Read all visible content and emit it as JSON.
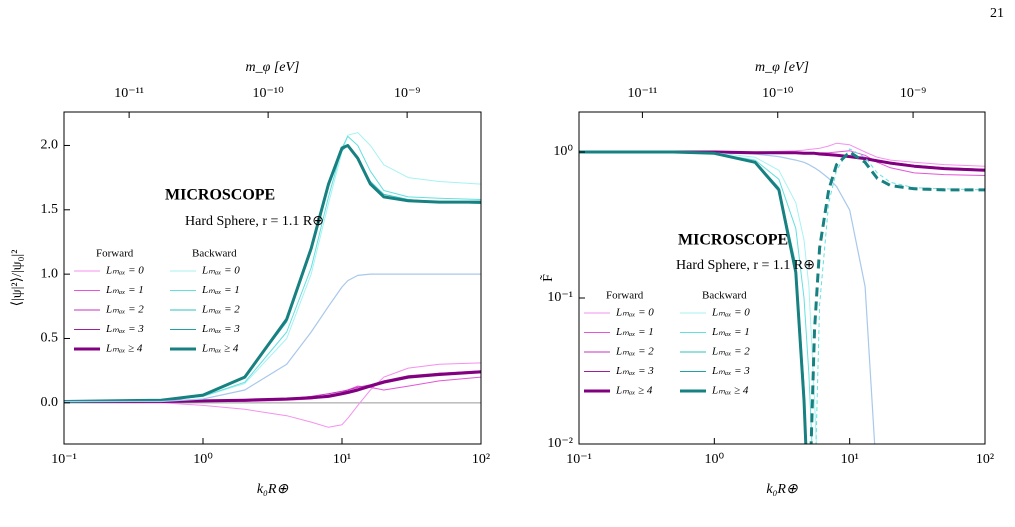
{
  "page_number": "21",
  "chart_data": [
    {
      "type": "line",
      "xscale": "log",
      "yscale": "linear",
      "xlabel": "k₀R⊕",
      "ylabel": "⟨|ψ|²⟩/|ψ₀|²",
      "x2label": "m_φ [eV]",
      "xlim": [
        0.1,
        100
      ],
      "ylim": [
        -0.32,
        2.26
      ],
      "xticks": [
        {
          "value": 0.1,
          "label": "10⁻¹"
        },
        {
          "value": 1,
          "label": "10⁰"
        },
        {
          "value": 10,
          "label": "10¹"
        },
        {
          "value": 100,
          "label": "10²"
        }
      ],
      "yticks": [
        {
          "value": 0,
          "label": "0.0"
        },
        0.5,
        {
          "value": 1,
          "label": "1.0"
        },
        1.5,
        {
          "value": 2,
          "label": "2.0"
        }
      ],
      "x2lim": [
        3.4e-12,
        3.4e-09
      ],
      "x2ticks": [
        {
          "value": 1e-11,
          "label": "10⁻¹¹"
        },
        {
          "value": 1e-10,
          "label": "10⁻¹⁰"
        },
        {
          "value": 1e-09,
          "label": "10⁻⁹"
        }
      ],
      "hline": 0,
      "annotations": [
        "MICROSCOPE",
        "Hard Sphere, r = 1.1 R⊕"
      ],
      "legend_headers": [
        "Forward",
        "Backward"
      ],
      "x": [
        0.1,
        0.5,
        1,
        2,
        4,
        6,
        8,
        10,
        11,
        13,
        16,
        20,
        30,
        50,
        100
      ],
      "series": [
        {
          "name": "Lₘₐₓ = 0",
          "color": "#f590ee",
          "width": 1,
          "values": [
            0.01,
            0.0,
            -0.02,
            -0.05,
            -0.1,
            -0.15,
            -0.19,
            -0.17,
            -0.12,
            -0.02,
            0.1,
            0.2,
            0.27,
            0.3,
            0.31
          ]
        },
        {
          "name": "Lₘₐₓ = 1",
          "color": "#e455d8",
          "width": 1,
          "values": [
            0.01,
            0.01,
            0.01,
            0.01,
            0.02,
            0.03,
            0.05,
            0.08,
            0.1,
            0.13,
            0.12,
            0.1,
            0.13,
            0.17,
            0.2
          ]
        },
        {
          "name": "Lₘₐₓ = 2",
          "color": "#c435bd",
          "width": 1,
          "values": [
            0.01,
            0.01,
            0.01,
            0.02,
            0.03,
            0.05,
            0.07,
            0.09,
            0.1,
            0.12,
            0.14,
            0.17,
            0.2,
            0.23,
            0.25
          ]
        },
        {
          "name": "Lₘₐₓ = 3",
          "color": "#9c209a",
          "width": 1,
          "values": [
            0.01,
            0.01,
            0.015,
            0.02,
            0.03,
            0.04,
            0.06,
            0.08,
            0.09,
            0.11,
            0.14,
            0.17,
            0.21,
            0.23,
            0.24
          ]
        },
        {
          "name": "Lₘₐₓ ≥ 4",
          "color": "#800080",
          "width": 3,
          "values": [
            0.01,
            0.01,
            0.015,
            0.02,
            0.03,
            0.04,
            0.05,
            0.07,
            0.08,
            0.1,
            0.13,
            0.16,
            0.2,
            0.22,
            0.24
          ]
        },
        {
          "name": "Lₘₐₓ = 0",
          "color": "#a6f2f2",
          "width": 1,
          "values": [
            0.01,
            0.02,
            0.05,
            0.15,
            0.5,
            1.0,
            1.55,
            1.95,
            2.08,
            2.1,
            2.0,
            1.85,
            1.75,
            1.72,
            1.7
          ]
        },
        {
          "name": "Lₘₐₓ = 1",
          "color": "#62e0e0",
          "width": 1,
          "values": [
            0.01,
            0.02,
            0.05,
            0.16,
            0.55,
            1.05,
            1.6,
            1.98,
            2.07,
            2.0,
            1.8,
            1.65,
            1.6,
            1.59,
            1.58
          ]
        },
        {
          "name": "Lₘₐₓ = 2",
          "color": "#32c0c0",
          "width": 1,
          "values": [
            0.01,
            0.02,
            0.06,
            0.2,
            0.63,
            1.18,
            1.68,
            1.96,
            2.0,
            1.9,
            1.72,
            1.62,
            1.58,
            1.56,
            1.55
          ]
        },
        {
          "name": "Lₘₐₓ = 3",
          "color": "#20a0a0",
          "width": 1,
          "values": [
            0.01,
            0.02,
            0.06,
            0.2,
            0.64,
            1.19,
            1.69,
            1.97,
            2.0,
            1.89,
            1.7,
            1.6,
            1.57,
            1.56,
            1.55
          ]
        },
        {
          "name": "Lₘₐₓ ≥ 4",
          "color": "#178080",
          "width": 3,
          "values": [
            0.01,
            0.02,
            0.06,
            0.2,
            0.65,
            1.2,
            1.7,
            1.98,
            2.0,
            1.9,
            1.7,
            1.6,
            1.57,
            1.56,
            1.56
          ]
        },
        {
          "color": "#a8c8ec",
          "width": 1.2,
          "values": [
            0.01,
            0.01,
            0.03,
            0.1,
            0.3,
            0.55,
            0.75,
            0.9,
            0.95,
            0.99,
            1.0,
            1.0,
            1.0,
            1.0,
            1.0
          ]
        }
      ]
    },
    {
      "type": "line",
      "xscale": "log",
      "yscale": "log",
      "xlabel": "k₀R⊕",
      "ylabel": "F̃",
      "x2label": "m_φ [eV]",
      "xlim": [
        0.1,
        100
      ],
      "ylim": [
        0.01,
        1.88
      ],
      "xticks": [
        {
          "value": 0.1,
          "label": "10⁻¹"
        },
        {
          "value": 1,
          "label": "10⁰"
        },
        {
          "value": 10,
          "label": "10¹"
        },
        {
          "value": 100,
          "label": "10²"
        }
      ],
      "yticks": [
        {
          "value": 0.01,
          "label": "10⁻²"
        },
        {
          "value": 0.1,
          "label": "10⁻¹"
        },
        {
          "value": 1,
          "label": "10⁰"
        }
      ],
      "x2lim": [
        3.4e-12,
        3.4e-09
      ],
      "x2ticks": [
        {
          "value": 1e-11,
          "label": "10⁻¹¹"
        },
        {
          "value": 1e-10,
          "label": "10⁻¹⁰"
        },
        {
          "value": 1e-09,
          "label": "10⁻⁹"
        }
      ],
      "annotations": [
        "MICROSCOPE",
        "Hard Sphere, r = 1.1 R⊕"
      ],
      "legend_headers": [
        "Forward",
        "Backward"
      ],
      "x": [
        0.1,
        0.5,
        1,
        2,
        3,
        4,
        4.6,
        5,
        5.5,
        6,
        7,
        8,
        10,
        13,
        16,
        20,
        30,
        50,
        100
      ],
      "series": [
        {
          "color": "#a8c8ec",
          "width": 1.2,
          "values": [
            1,
            1,
            0.99,
            0.97,
            0.93,
            0.88,
            0.85,
            0.82,
            0.78,
            0.74,
            0.66,
            0.58,
            0.4,
            0.12,
            0.005,
            null,
            null,
            null,
            null
          ]
        },
        {
          "name": "Lₘₐₓ = 0",
          "color": "#f590ee",
          "width": 1,
          "values": [
            1,
            1,
            1,
            1,
            1.01,
            1.02,
            1.03,
            1.04,
            1.05,
            1.06,
            1.1,
            1.15,
            1.12,
            1.0,
            0.92,
            0.88,
            0.85,
            0.82,
            0.8
          ]
        },
        {
          "name": "Lₘₐₓ = 1",
          "color": "#e455d8",
          "width": 1,
          "values": [
            1,
            1,
            1,
            0.99,
            0.99,
            0.99,
            0.99,
            0.99,
            0.99,
            0.99,
            0.99,
            1.0,
            1.02,
            0.95,
            0.85,
            0.78,
            0.72,
            0.7,
            0.69
          ]
        },
        {
          "name": "Lₘₐₓ = 2",
          "color": "#c435bd",
          "width": 1,
          "values": [
            1,
            1,
            1,
            0.99,
            0.99,
            0.98,
            0.98,
            0.98,
            0.98,
            0.97,
            0.96,
            0.95,
            0.94,
            0.92,
            0.88,
            0.84,
            0.8,
            0.77,
            0.76
          ]
        },
        {
          "name": "Lₘₐₓ = 3",
          "color": "#9c209a",
          "width": 1,
          "values": [
            1,
            1,
            1,
            0.99,
            0.99,
            0.99,
            0.98,
            0.98,
            0.98,
            0.97,
            0.96,
            0.95,
            0.93,
            0.91,
            0.88,
            0.85,
            0.81,
            0.78,
            0.76
          ]
        },
        {
          "name": "Lₘₐₓ ≥ 4",
          "color": "#800080",
          "width": 3,
          "values": [
            1,
            1,
            1,
            0.99,
            0.99,
            0.99,
            0.98,
            0.98,
            0.98,
            0.97,
            0.96,
            0.95,
            0.93,
            0.9,
            0.87,
            0.84,
            0.8,
            0.77,
            0.75
          ]
        },
        {
          "name": "Lₘₐₓ = 0",
          "color": "#a6f2f2",
          "width": 1,
          "values": [
            1,
            1,
            0.99,
            0.92,
            0.75,
            0.45,
            0.25,
            0.12,
            0.02,
            0.003,
            null,
            null,
            null,
            null,
            null,
            null,
            null,
            null,
            null
          ]
        },
        {
          "name": "Lₘₐₓ = 1",
          "color": "#62e0e0",
          "width": 1,
          "values": [
            1,
            1,
            0.98,
            0.88,
            0.65,
            0.3,
            0.1,
            0.03,
            0.004,
            null,
            null,
            null,
            null,
            null,
            null,
            null,
            null,
            null,
            null
          ]
        },
        {
          "name": "Lₘₐₓ = 2",
          "color": "#32c0c0",
          "width": 1,
          "values": [
            1,
            1,
            0.98,
            0.86,
            0.57,
            0.17,
            0.025,
            0.004,
            null,
            null,
            null,
            null,
            null,
            null,
            null,
            null,
            null,
            null,
            null
          ]
        },
        {
          "name": "Lₘₐₓ = 3",
          "color": "#20a0a0",
          "width": 1,
          "values": [
            1,
            1,
            0.98,
            0.85,
            0.56,
            0.16,
            0.022,
            0.003,
            null,
            null,
            null,
            null,
            null,
            null,
            null,
            null,
            null,
            null,
            null
          ]
        },
        {
          "name": "Lₘₐₓ ≥ 4",
          "color": "#178080",
          "width": 3,
          "values": [
            1,
            1,
            0.98,
            0.85,
            0.55,
            0.15,
            0.02,
            0.003,
            null,
            null,
            null,
            null,
            null,
            null,
            null,
            null,
            null,
            null,
            null
          ]
        },
        {
          "color": "#62e0e0",
          "width": 1,
          "dash": true,
          "values": [
            null,
            null,
            null,
            null,
            null,
            null,
            null,
            null,
            0.004,
            0.09,
            0.45,
            0.75,
            1.05,
            0.92,
            0.72,
            0.62,
            0.57,
            0.56,
            0.55
          ]
        },
        {
          "color": "#178080",
          "width": 3,
          "dash": true,
          "values": [
            null,
            null,
            null,
            null,
            null,
            null,
            null,
            0.003,
            0.06,
            0.22,
            0.55,
            0.82,
            1.0,
            0.85,
            0.66,
            0.59,
            0.56,
            0.55,
            0.55
          ]
        }
      ]
    }
  ]
}
